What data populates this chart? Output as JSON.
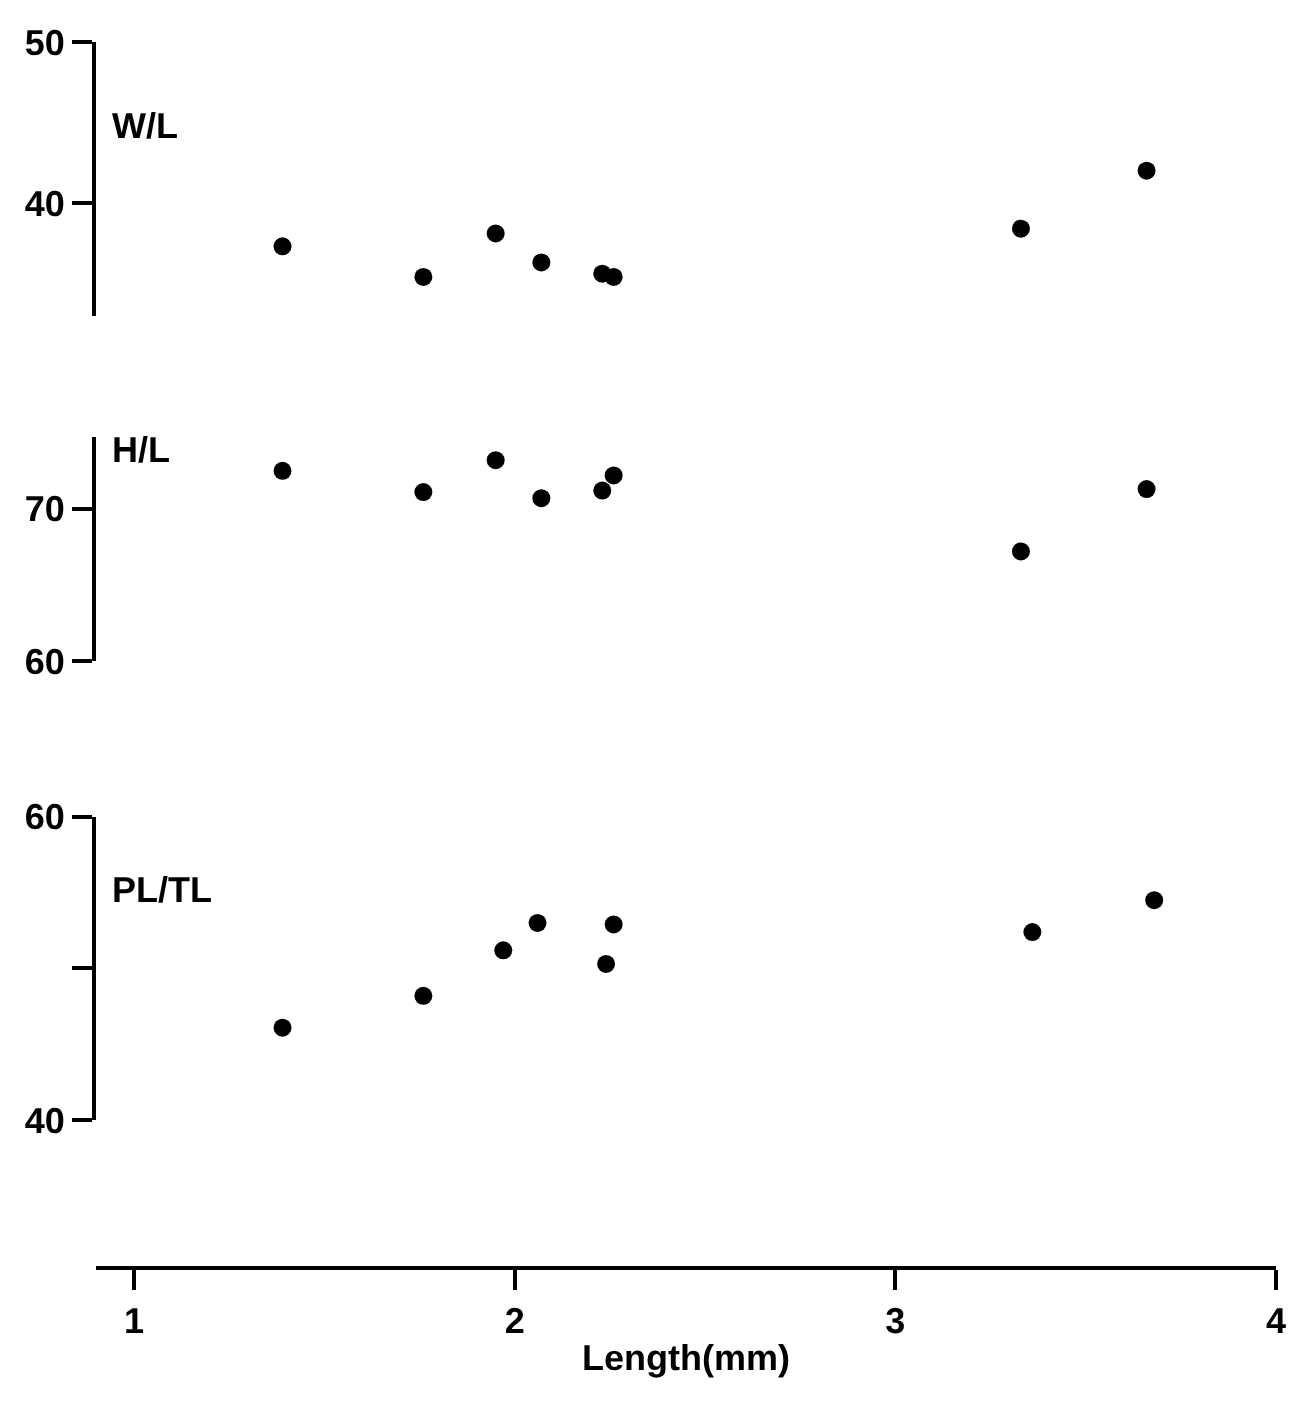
{
  "chart_data": [
    {
      "type": "scatter",
      "ylabel": "W/L",
      "x": [
        1.39,
        1.76,
        1.95,
        2.07,
        2.23,
        2.26,
        3.33,
        3.66
      ],
      "values": [
        37.3,
        35.4,
        38.1,
        36.3,
        35.6,
        35.4,
        38.4,
        42.0
      ],
      "color": "#000000",
      "marker": "circle",
      "xlim": [
        0.9,
        4
      ],
      "ylim": [
        33,
        50
      ],
      "yticks": [
        40,
        50
      ],
      "tick_labels": "y"
    },
    {
      "type": "scatter",
      "ylabel": "H/L",
      "x": [
        1.39,
        1.76,
        1.95,
        2.07,
        2.23,
        2.26,
        3.33,
        3.66
      ],
      "values": [
        72.5,
        71.1,
        73.2,
        70.7,
        71.2,
        72.2,
        67.2,
        71.3
      ],
      "color": "#000000",
      "marker": "circle",
      "xlim": [
        0.9,
        4
      ],
      "ylim": [
        60,
        74.7
      ],
      "yticks": [
        60,
        70
      ],
      "tick_labels": "y"
    },
    {
      "type": "scatter",
      "ylabel": "PL/TL",
      "xlabel": "Length(mm)",
      "x": [
        1.39,
        1.76,
        1.97,
        2.06,
        2.24,
        2.26,
        3.36,
        3.68
      ],
      "values": [
        46.1,
        48.2,
        51.2,
        53.0,
        50.3,
        52.9,
        52.4,
        54.5
      ],
      "color": "#000000",
      "marker": "circle",
      "xlim": [
        0.9,
        4
      ],
      "xticks": [
        1,
        2,
        3,
        4
      ],
      "ylim": [
        40,
        60
      ],
      "yticks": [
        40,
        {
          "value": 50,
          "label": null
        },
        60
      ]
    }
  ]
}
